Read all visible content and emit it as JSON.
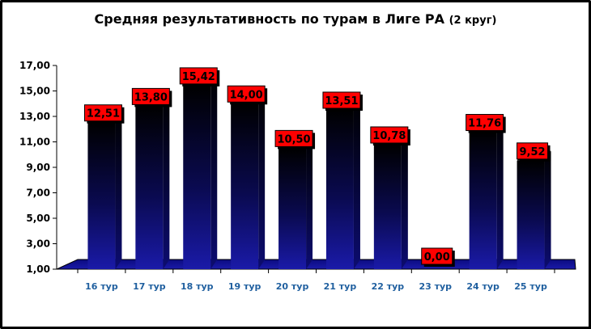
{
  "chart_data": {
    "type": "bar",
    "title": "Средняя результативность по турам в Лиге РА",
    "subtitle": "(2 круг)",
    "categories": [
      "16 тур",
      "17 тур",
      "18 тур",
      "19 тур",
      "20 тур",
      "21 тур",
      "22 тур",
      "23 тур",
      "24 тур",
      "25 тур"
    ],
    "values": [
      12.51,
      13.8,
      15.42,
      14.0,
      10.5,
      13.51,
      10.78,
      0.0,
      11.76,
      9.52
    ],
    "value_labels": [
      "12,51",
      "13,80",
      "15,42",
      "14,00",
      "10,50",
      "13,51",
      "10,78",
      "0,00",
      "11,76",
      "9,52"
    ],
    "ylim": [
      1,
      17
    ],
    "yticks": [
      1,
      3,
      5,
      7,
      9,
      11,
      13,
      15,
      17
    ],
    "ytick_labels": [
      "1,00",
      "3,00",
      "5,00",
      "7,00",
      "9,00",
      "11,00",
      "13,00",
      "15,00",
      "17,00"
    ],
    "xlabel": "",
    "ylabel": "",
    "grid": false,
    "legend": "none",
    "colors": {
      "bar_top": "#000000",
      "bar_bottom": "#1a1aa8",
      "label_fill": "#ff0000",
      "label_text": "#000000",
      "tick_x_text": "#1f5f9f",
      "tick_y_text": "#000000"
    }
  }
}
